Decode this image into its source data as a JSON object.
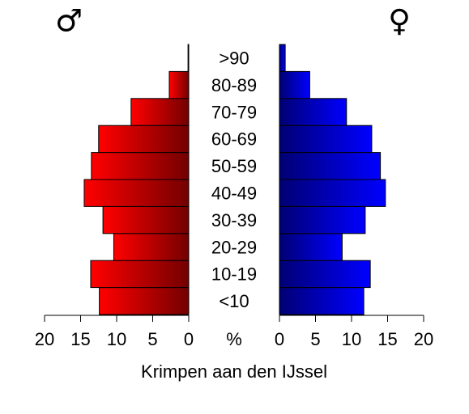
{
  "chart_data": {
    "type": "pyramid",
    "title": "Krimpen aan den IJssel",
    "categories": [
      "<10",
      "10-19",
      "20-29",
      "30-39",
      "40-49",
      "50-59",
      "60-69",
      "70-79",
      "80-89",
      ">90"
    ],
    "series": [
      {
        "name": "♂",
        "color": "#ff0000",
        "values": [
          12.4,
          13.6,
          10.4,
          11.9,
          14.5,
          13.5,
          12.5,
          8.0,
          2.7,
          0.1
        ]
      },
      {
        "name": "♀",
        "color": "#0000ff",
        "values": [
          11.7,
          12.6,
          8.7,
          11.9,
          14.7,
          14.0,
          12.8,
          9.3,
          4.2,
          0.8
        ]
      }
    ],
    "x_label": "%",
    "xlim": [
      0,
      20
    ],
    "xticks": [
      0,
      5,
      10,
      15,
      20
    ]
  }
}
